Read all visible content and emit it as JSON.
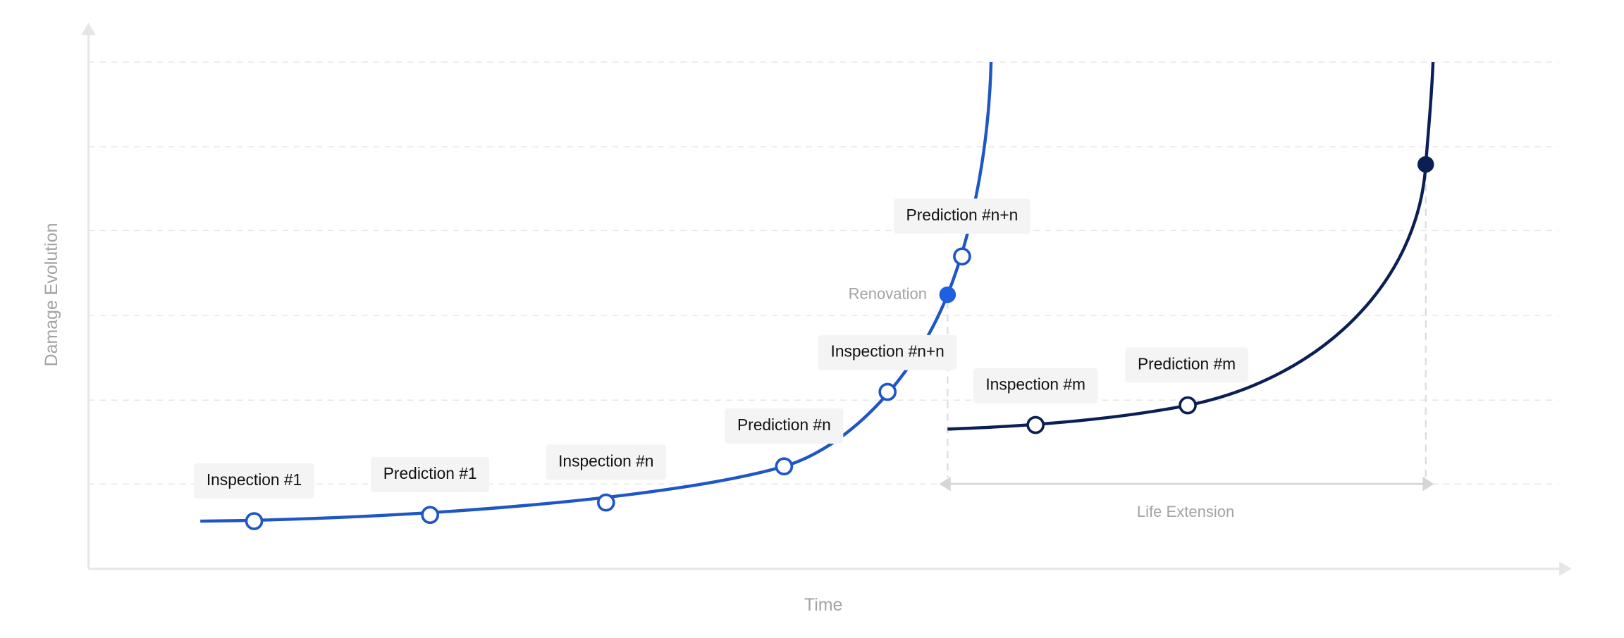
{
  "axes": {
    "y_label": "Damage Evolution",
    "x_label": "Time"
  },
  "annotations": {
    "renovation": "Renovation",
    "life_extension": "Life Extension"
  },
  "labels": [
    "Inspection #1",
    "Prediction #1",
    "Inspection #n",
    "Prediction #n",
    "Inspection #n+n",
    "Prediction #n+n",
    "Inspection #m",
    "Prediction #m"
  ]
}
